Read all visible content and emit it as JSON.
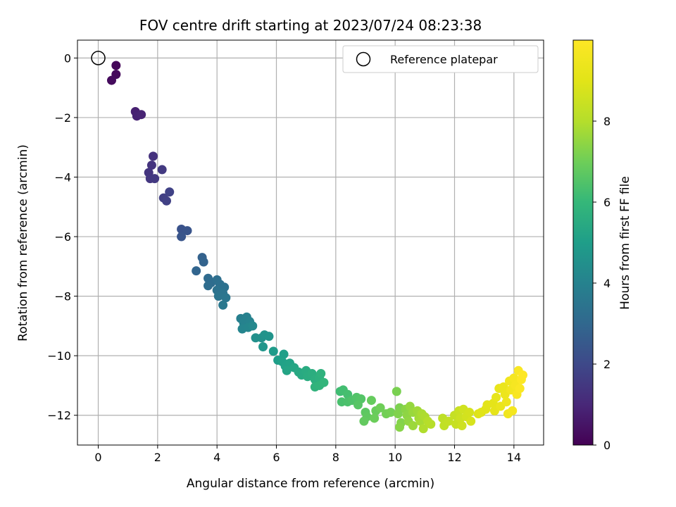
{
  "chart_data": {
    "type": "scatter",
    "title": "FOV centre drift starting at 2023/07/24 08:23:38",
    "xlabel": "Angular distance from reference (arcmin)",
    "ylabel": "Rotation from reference (arcmin)",
    "xlim": [
      -0.7,
      15.0
    ],
    "ylim": [
      -13.0,
      0.6
    ],
    "xticks": [
      0,
      2,
      4,
      6,
      8,
      10,
      12,
      14
    ],
    "yticks": [
      -12,
      -10,
      -8,
      -6,
      -4,
      -2,
      0
    ],
    "grid": true,
    "legend": {
      "position": "top-right",
      "entries": [
        "Reference platepar"
      ]
    },
    "reference_point": {
      "x": 0,
      "y": 0,
      "label": "Reference platepar"
    },
    "colorbar": {
      "label": "Hours from first FF file",
      "colormap": "viridis",
      "range": [
        0,
        10
      ],
      "ticks": [
        0,
        2,
        4,
        6,
        8
      ]
    },
    "points": [
      {
        "x": 0.6,
        "y": -0.25,
        "c": 0.15
      },
      {
        "x": 0.6,
        "y": -0.55,
        "c": 0.2
      },
      {
        "x": 0.45,
        "y": -0.75,
        "c": 0.25
      },
      {
        "x": 1.25,
        "y": -1.8,
        "c": 0.8
      },
      {
        "x": 1.3,
        "y": -1.95,
        "c": 0.85
      },
      {
        "x": 1.45,
        "y": -1.9,
        "c": 0.9
      },
      {
        "x": 1.85,
        "y": -3.3,
        "c": 1.3
      },
      {
        "x": 1.8,
        "y": -3.6,
        "c": 1.35
      },
      {
        "x": 1.7,
        "y": -3.85,
        "c": 1.4
      },
      {
        "x": 1.75,
        "y": -4.05,
        "c": 1.45
      },
      {
        "x": 1.9,
        "y": -4.05,
        "c": 1.5
      },
      {
        "x": 2.15,
        "y": -3.75,
        "c": 1.55
      },
      {
        "x": 2.2,
        "y": -4.7,
        "c": 1.7
      },
      {
        "x": 2.3,
        "y": -4.8,
        "c": 1.75
      },
      {
        "x": 2.4,
        "y": -4.5,
        "c": 1.8
      },
      {
        "x": 2.8,
        "y": -5.75,
        "c": 2.3
      },
      {
        "x": 3.0,
        "y": -5.8,
        "c": 2.35
      },
      {
        "x": 2.8,
        "y": -6.0,
        "c": 2.4
      },
      {
        "x": 3.5,
        "y": -6.7,
        "c": 2.8
      },
      {
        "x": 3.55,
        "y": -6.85,
        "c": 2.85
      },
      {
        "x": 3.3,
        "y": -7.15,
        "c": 2.9
      },
      {
        "x": 3.7,
        "y": -7.4,
        "c": 3.1
      },
      {
        "x": 3.8,
        "y": -7.55,
        "c": 3.15
      },
      {
        "x": 3.7,
        "y": -7.65,
        "c": 3.2
      },
      {
        "x": 4.0,
        "y": -7.45,
        "c": 3.25
      },
      {
        "x": 4.1,
        "y": -7.6,
        "c": 3.3
      },
      {
        "x": 4.25,
        "y": -7.7,
        "c": 3.35
      },
      {
        "x": 4.0,
        "y": -7.8,
        "c": 3.4
      },
      {
        "x": 4.2,
        "y": -7.9,
        "c": 3.45
      },
      {
        "x": 4.05,
        "y": -8.0,
        "c": 3.5
      },
      {
        "x": 4.3,
        "y": -8.05,
        "c": 3.55
      },
      {
        "x": 4.2,
        "y": -8.3,
        "c": 3.6
      },
      {
        "x": 4.8,
        "y": -8.75,
        "c": 3.9
      },
      {
        "x": 5.0,
        "y": -8.7,
        "c": 3.95
      },
      {
        "x": 4.9,
        "y": -8.9,
        "c": 4.0
      },
      {
        "x": 5.1,
        "y": -8.85,
        "c": 4.05
      },
      {
        "x": 4.85,
        "y": -9.1,
        "c": 4.1
      },
      {
        "x": 5.05,
        "y": -9.05,
        "c": 4.15
      },
      {
        "x": 5.2,
        "y": -9.0,
        "c": 4.2
      },
      {
        "x": 5.3,
        "y": -9.4,
        "c": 4.5
      },
      {
        "x": 5.5,
        "y": -9.4,
        "c": 4.55
      },
      {
        "x": 5.6,
        "y": -9.3,
        "c": 4.6
      },
      {
        "x": 5.75,
        "y": -9.35,
        "c": 4.65
      },
      {
        "x": 5.55,
        "y": -9.7,
        "c": 4.7
      },
      {
        "x": 5.9,
        "y": -9.85,
        "c": 4.9
      },
      {
        "x": 6.05,
        "y": -10.15,
        "c": 5.0
      },
      {
        "x": 6.25,
        "y": -9.95,
        "c": 5.05
      },
      {
        "x": 6.2,
        "y": -10.2,
        "c": 5.1
      },
      {
        "x": 6.3,
        "y": -10.35,
        "c": 5.15
      },
      {
        "x": 6.45,
        "y": -10.25,
        "c": 5.2
      },
      {
        "x": 6.35,
        "y": -10.5,
        "c": 5.25
      },
      {
        "x": 6.6,
        "y": -10.4,
        "c": 5.3
      },
      {
        "x": 6.75,
        "y": -10.55,
        "c": 5.4
      },
      {
        "x": 6.85,
        "y": -10.65,
        "c": 5.45
      },
      {
        "x": 7.0,
        "y": -10.5,
        "c": 5.5
      },
      {
        "x": 7.05,
        "y": -10.7,
        "c": 5.55
      },
      {
        "x": 7.2,
        "y": -10.6,
        "c": 5.6
      },
      {
        "x": 7.3,
        "y": -10.8,
        "c": 5.65
      },
      {
        "x": 7.45,
        "y": -10.75,
        "c": 5.7
      },
      {
        "x": 7.5,
        "y": -10.6,
        "c": 5.75
      },
      {
        "x": 7.3,
        "y": -11.05,
        "c": 5.8
      },
      {
        "x": 7.45,
        "y": -11.0,
        "c": 5.85
      },
      {
        "x": 7.6,
        "y": -10.9,
        "c": 5.9
      },
      {
        "x": 8.15,
        "y": -11.2,
        "c": 6.2
      },
      {
        "x": 8.25,
        "y": -11.15,
        "c": 6.25
      },
      {
        "x": 8.4,
        "y": -11.3,
        "c": 6.3
      },
      {
        "x": 8.2,
        "y": -11.55,
        "c": 6.35
      },
      {
        "x": 8.4,
        "y": -11.55,
        "c": 6.4
      },
      {
        "x": 8.55,
        "y": -11.5,
        "c": 6.45
      },
      {
        "x": 8.7,
        "y": -11.4,
        "c": 6.5
      },
      {
        "x": 8.85,
        "y": -11.45,
        "c": 6.55
      },
      {
        "x": 8.75,
        "y": -11.65,
        "c": 6.6
      },
      {
        "x": 9.0,
        "y": -11.9,
        "c": 6.7
      },
      {
        "x": 9.05,
        "y": -12.05,
        "c": 6.75
      },
      {
        "x": 8.95,
        "y": -12.2,
        "c": 6.8
      },
      {
        "x": 9.2,
        "y": -11.5,
        "c": 6.85
      },
      {
        "x": 9.35,
        "y": -11.85,
        "c": 6.9
      },
      {
        "x": 9.3,
        "y": -12.1,
        "c": 6.95
      },
      {
        "x": 9.5,
        "y": -11.75,
        "c": 7.0
      },
      {
        "x": 9.7,
        "y": -11.95,
        "c": 7.05
      },
      {
        "x": 9.85,
        "y": -11.9,
        "c": 7.1
      },
      {
        "x": 10.05,
        "y": -11.2,
        "c": 7.15
      },
      {
        "x": 10.15,
        "y": -11.75,
        "c": 7.2
      },
      {
        "x": 10.1,
        "y": -11.95,
        "c": 7.25
      },
      {
        "x": 10.2,
        "y": -12.25,
        "c": 7.3
      },
      {
        "x": 10.15,
        "y": -12.4,
        "c": 7.35
      },
      {
        "x": 10.35,
        "y": -11.8,
        "c": 7.4
      },
      {
        "x": 10.4,
        "y": -12.0,
        "c": 7.45
      },
      {
        "x": 10.45,
        "y": -12.2,
        "c": 7.5
      },
      {
        "x": 10.5,
        "y": -11.7,
        "c": 7.55
      },
      {
        "x": 10.6,
        "y": -11.9,
        "c": 7.6
      },
      {
        "x": 10.6,
        "y": -12.35,
        "c": 7.65
      },
      {
        "x": 10.75,
        "y": -11.85,
        "c": 7.7
      },
      {
        "x": 10.8,
        "y": -12.1,
        "c": 7.75
      },
      {
        "x": 10.85,
        "y": -12.2,
        "c": 7.8
      },
      {
        "x": 10.9,
        "y": -11.95,
        "c": 7.85
      },
      {
        "x": 11.0,
        "y": -12.05,
        "c": 7.9
      },
      {
        "x": 10.95,
        "y": -12.45,
        "c": 7.95
      },
      {
        "x": 11.1,
        "y": -12.2,
        "c": 8.0
      },
      {
        "x": 11.2,
        "y": -12.3,
        "c": 8.05
      },
      {
        "x": 11.6,
        "y": -12.1,
        "c": 8.2
      },
      {
        "x": 11.65,
        "y": -12.35,
        "c": 8.25
      },
      {
        "x": 11.8,
        "y": -12.2,
        "c": 8.3
      },
      {
        "x": 12.0,
        "y": -12.0,
        "c": 8.35
      },
      {
        "x": 12.05,
        "y": -12.3,
        "c": 8.4
      },
      {
        "x": 12.15,
        "y": -11.85,
        "c": 8.45
      },
      {
        "x": 12.2,
        "y": -12.1,
        "c": 8.5
      },
      {
        "x": 12.25,
        "y": -12.35,
        "c": 8.55
      },
      {
        "x": 12.3,
        "y": -11.8,
        "c": 8.6
      },
      {
        "x": 12.4,
        "y": -12.05,
        "c": 8.65
      },
      {
        "x": 12.5,
        "y": -11.9,
        "c": 8.7
      },
      {
        "x": 12.55,
        "y": -12.2,
        "c": 8.75
      },
      {
        "x": 12.8,
        "y": -11.95,
        "c": 8.9
      },
      {
        "x": 12.9,
        "y": -11.9,
        "c": 8.95
      },
      {
        "x": 13.05,
        "y": -11.8,
        "c": 9.0
      },
      {
        "x": 13.1,
        "y": -11.65,
        "c": 9.05
      },
      {
        "x": 13.3,
        "y": -11.6,
        "c": 9.1
      },
      {
        "x": 13.35,
        "y": -11.85,
        "c": 9.15
      },
      {
        "x": 13.4,
        "y": -11.4,
        "c": 9.2
      },
      {
        "x": 13.5,
        "y": -11.1,
        "c": 9.25
      },
      {
        "x": 13.55,
        "y": -11.7,
        "c": 9.3
      },
      {
        "x": 13.65,
        "y": -11.05,
        "c": 9.35
      },
      {
        "x": 13.7,
        "y": -11.3,
        "c": 9.4
      },
      {
        "x": 13.75,
        "y": -11.55,
        "c": 9.45
      },
      {
        "x": 13.8,
        "y": -11.95,
        "c": 9.5
      },
      {
        "x": 13.85,
        "y": -10.85,
        "c": 9.55
      },
      {
        "x": 13.9,
        "y": -11.15,
        "c": 9.6
      },
      {
        "x": 13.95,
        "y": -11.85,
        "c": 9.65
      },
      {
        "x": 14.0,
        "y": -10.75,
        "c": 9.7
      },
      {
        "x": 14.05,
        "y": -11.0,
        "c": 9.75
      },
      {
        "x": 14.1,
        "y": -11.3,
        "c": 9.8
      },
      {
        "x": 14.15,
        "y": -10.5,
        "c": 9.85
      },
      {
        "x": 14.2,
        "y": -11.1,
        "c": 9.9
      },
      {
        "x": 14.25,
        "y": -10.8,
        "c": 9.95
      },
      {
        "x": 14.3,
        "y": -10.65,
        "c": 10.0
      }
    ]
  }
}
